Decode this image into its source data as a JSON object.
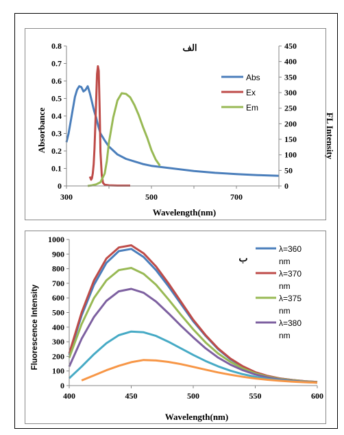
{
  "chart_data": [
    {
      "type": "line",
      "panel_label": "الف",
      "xlabel": "Wavelength(nm)",
      "ylabel": "Absorbance",
      "y2label": "FL Intensity",
      "xlim": [
        300,
        800
      ],
      "ylim": [
        0,
        0.8
      ],
      "y2lim": [
        0,
        450
      ],
      "x_ticks": [
        "300",
        "500",
        "700"
      ],
      "y_ticks": [
        "0",
        "0.1",
        "0.2",
        "0.3",
        "0.4",
        "0.5",
        "0.6",
        "0.7",
        "0.8"
      ],
      "y2_ticks": [
        "0",
        "50",
        "100",
        "150",
        "200",
        "250",
        "300",
        "350",
        "400",
        "450"
      ],
      "legend_position": "right",
      "series": [
        {
          "name": "Abs",
          "color": "#4a7ebb",
          "axis": "left",
          "x": [
            300,
            305,
            310,
            315,
            320,
            325,
            330,
            335,
            340,
            345,
            350,
            352,
            355,
            358,
            362,
            365,
            370,
            375,
            380,
            390,
            400,
            420,
            440,
            460,
            480,
            500,
            550,
            600,
            650,
            700,
            750,
            800
          ],
          "y": [
            0.25,
            0.3,
            0.37,
            0.44,
            0.51,
            0.55,
            0.57,
            0.565,
            0.54,
            0.55,
            0.57,
            0.555,
            0.53,
            0.5,
            0.46,
            0.43,
            0.39,
            0.34,
            0.3,
            0.26,
            0.225,
            0.18,
            0.155,
            0.14,
            0.125,
            0.115,
            0.1,
            0.085,
            0.075,
            0.068,
            0.062,
            0.058
          ]
        },
        {
          "name": "Ex",
          "color": "#be4b48",
          "axis": "right",
          "x": [
            355,
            358,
            360,
            362,
            364,
            366,
            368,
            370,
            372,
            374,
            376,
            378,
            380,
            383,
            386,
            390,
            400,
            420,
            450
          ],
          "y": [
            30,
            20,
            25,
            40,
            70,
            120,
            200,
            280,
            360,
            385,
            370,
            250,
            110,
            35,
            10,
            4,
            2,
            1,
            1
          ]
        },
        {
          "name": "Em",
          "color": "#98b954",
          "axis": "right",
          "x": [
            350,
            360,
            370,
            380,
            390,
            395,
            400,
            410,
            420,
            430,
            440,
            450,
            460,
            470,
            480,
            490,
            500,
            510,
            520
          ],
          "y": [
            0,
            2,
            5,
            12,
            40,
            80,
            140,
            220,
            275,
            298,
            296,
            285,
            260,
            228,
            190,
            155,
            115,
            85,
            65
          ]
        }
      ]
    },
    {
      "type": "line",
      "panel_label": "ب",
      "xlabel": "Wavelength(nm)",
      "ylabel": "Fluorescence Intensity",
      "xlim": [
        400,
        600
      ],
      "ylim": [
        0,
        1000
      ],
      "x_ticks": [
        "400",
        "450",
        "500",
        "550",
        "600"
      ],
      "y_ticks": [
        "0",
        "100",
        "200",
        "300",
        "400",
        "500",
        "600",
        "700",
        "800",
        "900",
        "1000"
      ],
      "legend_position": "top-right",
      "x": [
        400,
        410,
        420,
        430,
        440,
        450,
        460,
        470,
        480,
        490,
        500,
        510,
        520,
        530,
        540,
        550,
        560,
        570,
        580,
        590,
        600
      ],
      "series": [
        {
          "name": "λ=360 nm",
          "color": "#4a7ebb",
          "values": [
            210,
            480,
            690,
            840,
            920,
            935,
            880,
            790,
            680,
            560,
            440,
            340,
            250,
            180,
            130,
            90,
            65,
            48,
            38,
            30,
            25
          ]
        },
        {
          "name": "λ=370 nm",
          "color": "#be4b48",
          "values": [
            220,
            500,
            720,
            870,
            945,
            960,
            905,
            815,
            700,
            575,
            450,
            345,
            255,
            185,
            132,
            92,
            66,
            49,
            38,
            30,
            25
          ]
        },
        {
          "name": "λ=375 nm",
          "color": "#98b954",
          "values": [
            190,
            420,
            600,
            720,
            790,
            805,
            765,
            690,
            590,
            485,
            385,
            295,
            220,
            162,
            118,
            84,
            61,
            46,
            36,
            28,
            23
          ]
        },
        {
          "name": "λ=380 nm",
          "color": "#7d60a0",
          "values": [
            130,
            320,
            470,
            580,
            645,
            662,
            635,
            575,
            495,
            410,
            330,
            255,
            192,
            143,
            105,
            76,
            56,
            42,
            33,
            26,
            21
          ]
        },
        {
          "name": "",
          "color": "#46aac5",
          "values": [
            50,
            130,
            215,
            290,
            345,
            370,
            365,
            340,
            300,
            255,
            210,
            168,
            132,
            102,
            78,
            60,
            46,
            36,
            29,
            24,
            20
          ]
        },
        {
          "name": "",
          "color": "#f79646",
          "values": [
            null,
            35,
            70,
            105,
            135,
            160,
            175,
            172,
            162,
            147,
            128,
            109,
            90,
            74,
            60,
            49,
            40,
            33,
            27,
            23,
            20
          ]
        }
      ]
    }
  ]
}
